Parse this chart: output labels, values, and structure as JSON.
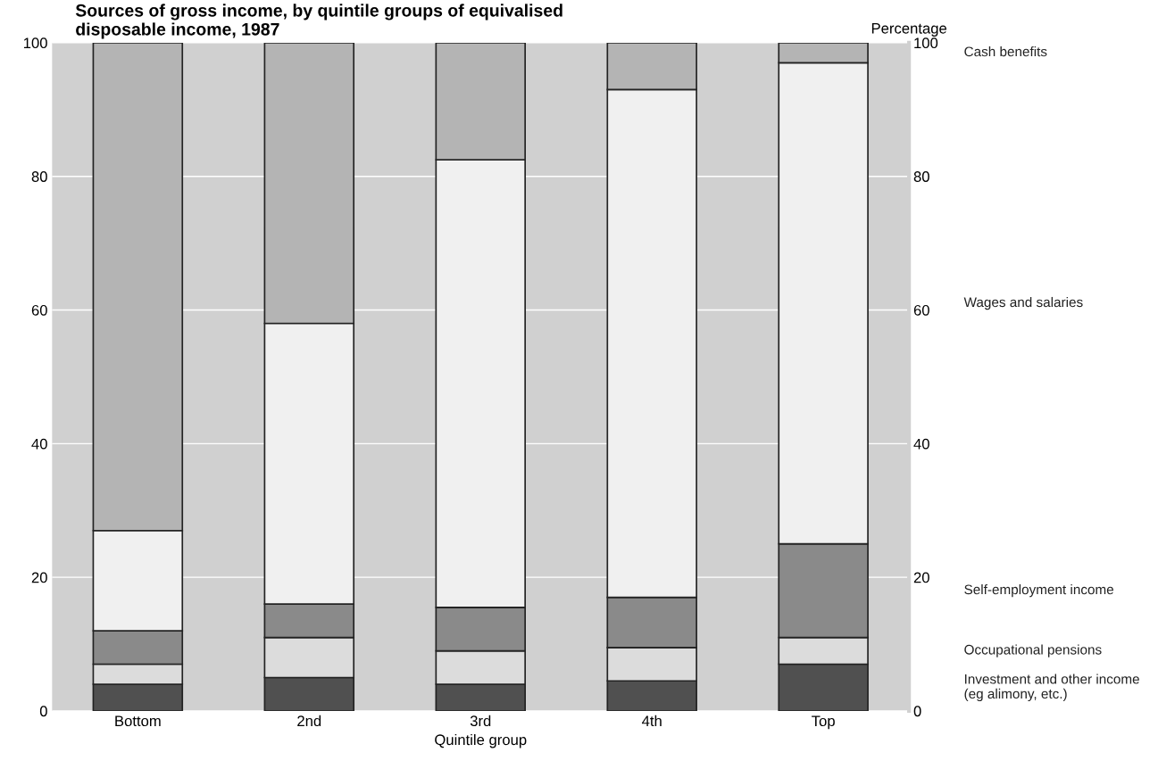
{
  "chart_data": {
    "type": "bar",
    "stacked": true,
    "title": "Sources of gross income, by quintile groups of equivalised\ndisposable income, 1987",
    "xlabel": "Quintile group",
    "y2label": "Percentage",
    "categories": [
      "Bottom",
      "2nd",
      "3rd",
      "4th",
      "Top"
    ],
    "series": [
      {
        "name": "Investment and other income\n(eg alimony, etc.)",
        "color": "#505050",
        "values": [
          4,
          5,
          4,
          4.5,
          7
        ]
      },
      {
        "name": "Occupational pensions",
        "color": "#dcdcdc",
        "values": [
          3,
          6,
          5,
          5,
          4
        ]
      },
      {
        "name": "Self-employment income",
        "color": "#8a8a8a",
        "values": [
          5,
          5,
          6.5,
          7.5,
          14
        ]
      },
      {
        "name": "Wages and salaries",
        "color": "#f0f0f0",
        "values": [
          15,
          42,
          67,
          76,
          72
        ]
      },
      {
        "name": "Cash benefits",
        "color": "#b4b4b4",
        "values": [
          73,
          42,
          17.5,
          7,
          3
        ]
      }
    ],
    "ylim": [
      0,
      100
    ],
    "yticks": [
      0,
      20,
      40,
      60,
      80,
      100
    ],
    "y2lim": [
      0,
      100
    ],
    "y2ticks": [
      0,
      20,
      40,
      60,
      80,
      100
    ],
    "grid": "y"
  }
}
